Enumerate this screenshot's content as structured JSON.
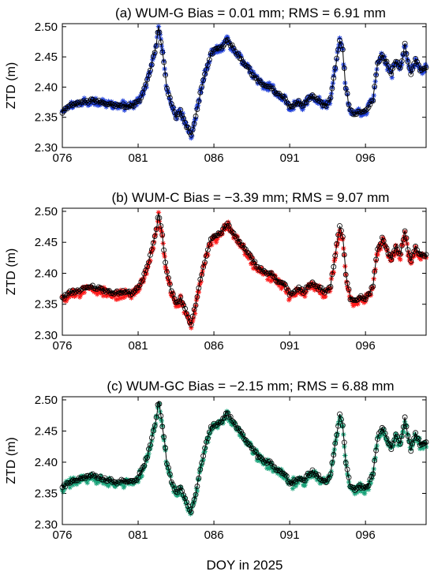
{
  "figure": {
    "xlabel": "DOY in 2025"
  },
  "chart_data": [
    {
      "type": "scatter",
      "title": "(a) WUM-G Bias = 0.01 mm; RMS = 6.91 mm",
      "ylabel": "ZTD (m)",
      "xlabel": "DOY in 2025",
      "xlim": [
        76,
        100
      ],
      "ylim": [
        2.3,
        2.505
      ],
      "xticks": [
        "076",
        "081",
        "086",
        "091",
        "096"
      ],
      "yticks": [
        "2.30",
        "2.35",
        "2.40",
        "2.45",
        "2.50"
      ],
      "series": [
        {
          "role": "reference",
          "marker": "circle-line",
          "color": "#000000"
        },
        {
          "role": "estimate",
          "marker": "asterisk",
          "color": "#1f3fd8",
          "bias_mm": 0.01
        }
      ]
    },
    {
      "type": "scatter",
      "title": "(b) WUM-C Bias = −3.39 mm; RMS = 9.07 mm",
      "ylabel": "ZTD (m)",
      "xlabel": "DOY in 2025",
      "xlim": [
        76,
        100
      ],
      "ylim": [
        2.3,
        2.505
      ],
      "xticks": [
        "076",
        "081",
        "086",
        "091",
        "096"
      ],
      "yticks": [
        "2.30",
        "2.35",
        "2.40",
        "2.45",
        "2.50"
      ],
      "series": [
        {
          "role": "reference",
          "marker": "circle-line",
          "color": "#000000"
        },
        {
          "role": "estimate",
          "marker": "asterisk",
          "color": "#ff1a1a",
          "bias_mm": -3.39
        }
      ]
    },
    {
      "type": "scatter",
      "title": "(c) WUM-GC Bias = −2.15 mm; RMS = 6.88 mm",
      "ylabel": "ZTD (m)",
      "xlabel": "DOY in 2025",
      "xlim": [
        76,
        100
      ],
      "ylim": [
        2.3,
        2.505
      ],
      "xticks": [
        "076",
        "081",
        "086",
        "091",
        "096"
      ],
      "yticks": [
        "2.30",
        "2.35",
        "2.40",
        "2.45",
        "2.50"
      ],
      "series": [
        {
          "role": "reference",
          "marker": "circle-line",
          "color": "#000000"
        },
        {
          "role": "estimate",
          "marker": "asterisk",
          "color": "#1aa37a",
          "bias_mm": -2.15
        }
      ]
    }
  ],
  "ztd_profile": {
    "x": [
      76.0,
      76.3,
      76.6,
      77.0,
      77.5,
      78.0,
      78.5,
      79.0,
      79.5,
      80.0,
      80.5,
      81.0,
      81.3,
      81.6,
      81.9,
      82.2,
      82.35,
      82.6,
      82.9,
      83.2,
      83.5,
      83.8,
      84.1,
      84.3,
      84.5,
      84.8,
      85.1,
      85.5,
      85.8,
      86.0,
      86.3,
      86.6,
      86.9,
      87.1,
      87.4,
      87.7,
      88.0,
      88.3,
      88.6,
      88.9,
      89.2,
      89.5,
      89.8,
      90.1,
      90.4,
      90.7,
      91.0,
      91.3,
      91.6,
      91.9,
      92.2,
      92.5,
      92.8,
      93.1,
      93.4,
      93.7,
      94.0,
      94.3,
      94.5,
      94.7,
      95.0,
      95.3,
      95.6,
      95.9,
      96.2,
      96.5,
      96.8,
      97.1,
      97.4,
      97.7,
      98.0,
      98.3,
      98.6,
      98.8,
      99.0,
      99.3,
      99.6,
      100.0
    ],
    "y": [
      2.36,
      2.365,
      2.37,
      2.372,
      2.375,
      2.378,
      2.375,
      2.372,
      2.368,
      2.37,
      2.368,
      2.375,
      2.39,
      2.41,
      2.44,
      2.47,
      2.5,
      2.46,
      2.4,
      2.37,
      2.35,
      2.36,
      2.34,
      2.33,
      2.318,
      2.35,
      2.39,
      2.43,
      2.455,
      2.46,
      2.462,
      2.47,
      2.48,
      2.47,
      2.46,
      2.45,
      2.44,
      2.43,
      2.42,
      2.41,
      2.405,
      2.4,
      2.398,
      2.39,
      2.385,
      2.38,
      2.365,
      2.37,
      2.375,
      2.37,
      2.38,
      2.385,
      2.378,
      2.374,
      2.37,
      2.38,
      2.43,
      2.475,
      2.46,
      2.4,
      2.36,
      2.355,
      2.362,
      2.358,
      2.365,
      2.38,
      2.44,
      2.455,
      2.44,
      2.42,
      2.445,
      2.43,
      2.47,
      2.44,
      2.42,
      2.445,
      2.43,
      2.43
    ]
  }
}
